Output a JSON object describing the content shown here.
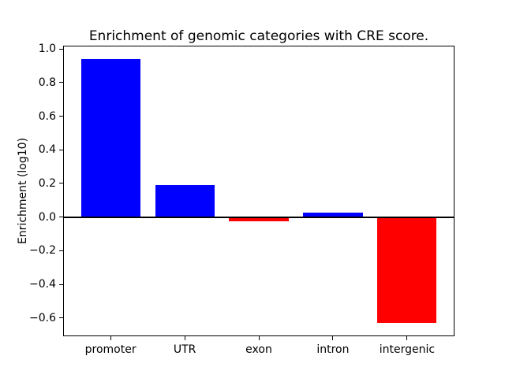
{
  "figure": {
    "background": "#ffffff",
    "text_color": "#000000"
  },
  "chart_data": {
    "type": "bar",
    "title": "Enrichment of genomic categories with CRE score.",
    "xlabel": "",
    "ylabel": "Enrichment (log10)",
    "categories": [
      "promoter",
      "UTR",
      "exon",
      "intron",
      "intergenic"
    ],
    "values": [
      0.94,
      0.19,
      -0.025,
      0.025,
      -0.63
    ],
    "positive_color": "#0000ff",
    "negative_color": "#ff0000",
    "bar_width": 0.8,
    "ylim": [
      -0.709,
      1.019
    ],
    "xlim": [
      -0.64,
      4.64
    ],
    "yticks": [
      1.0,
      0.8,
      0.6,
      0.4,
      0.2,
      0.0,
      -0.2,
      -0.4,
      -0.6
    ],
    "ytick_labels": [
      "1.0",
      "0.8",
      "0.6",
      "0.4",
      "0.2",
      "0.0",
      "−0.2",
      "−0.4",
      "−0.6"
    ],
    "zero_line": true,
    "zero_line_color": "#000000",
    "grid": false,
    "legend_position": "none"
  }
}
